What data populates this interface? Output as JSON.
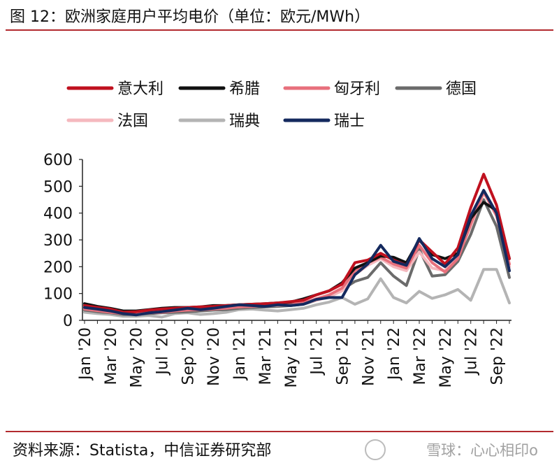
{
  "header": {
    "title": "图 12：欧洲家庭用户平均电价（单位：欧元/MWh）"
  },
  "footer": {
    "source": "资料来源：Statista，中信证券研究部",
    "watermark": "雪球：心心相印o"
  },
  "chart_data": {
    "type": "line",
    "title": "图 12：欧洲家庭用户平均电价（单位：欧元/MWh）",
    "xlabel": "",
    "ylabel": "",
    "ylim": [
      0,
      600
    ],
    "yticks": [
      0,
      100,
      200,
      300,
      400,
      500,
      600
    ],
    "x": [
      "Jan '20",
      "Feb '20",
      "Mar '20",
      "Apr '20",
      "May '20",
      "Jun '20",
      "Jul '20",
      "Aug '20",
      "Sep '20",
      "Oct '20",
      "Nov '20",
      "Dec '20",
      "Jan '21",
      "Feb '21",
      "Mar '21",
      "Apr '21",
      "May '21",
      "Jun '21",
      "Jul '21",
      "Aug '21",
      "Sep '21",
      "Oct '21",
      "Nov '21",
      "Dec '21",
      "Jan '22",
      "Feb '22",
      "Mar '22",
      "Apr '22",
      "May '22",
      "Jun '22",
      "Jul '22",
      "Aug '22",
      "Sep '22",
      "Oct '22"
    ],
    "xtick_labels": [
      "Jan '20",
      "Mar '20",
      "May '20",
      "Jul '20",
      "Sep '20",
      "Nov '20",
      "Jan '21",
      "Mar '21",
      "May '21",
      "Jul '21",
      "Sep '21",
      "Nov '21",
      "Jan '22",
      "Mar '22",
      "May '22",
      "Jul '22",
      "Sep '22"
    ],
    "legend_position": "top",
    "series": [
      {
        "name": "意大利",
        "color": "#c0111f",
        "values": [
          55,
          48,
          42,
          30,
          32,
          38,
          42,
          45,
          48,
          50,
          52,
          55,
          58,
          60,
          62,
          65,
          70,
          75,
          95,
          110,
          135,
          215,
          225,
          250,
          225,
          205,
          300,
          255,
          210,
          270,
          420,
          545,
          430,
          230
        ]
      },
      {
        "name": "希腊",
        "color": "#111111",
        "values": [
          62,
          52,
          45,
          35,
          35,
          40,
          45,
          48,
          48,
          50,
          55,
          55,
          58,
          60,
          62,
          65,
          68,
          80,
          95,
          110,
          140,
          195,
          215,
          240,
          235,
          215,
          300,
          245,
          230,
          250,
          380,
          440,
          410,
          230
        ]
      },
      {
        "name": "匈牙利",
        "color": "#e8707c",
        "values": [
          42,
          36,
          30,
          25,
          25,
          28,
          30,
          35,
          38,
          40,
          42,
          45,
          50,
          52,
          55,
          58,
          60,
          65,
          80,
          95,
          120,
          185,
          215,
          235,
          210,
          195,
          280,
          215,
          180,
          230,
          360,
          480,
          390,
          210
        ]
      },
      {
        "name": "德国",
        "color": "#6b6b6b",
        "values": [
          38,
          32,
          28,
          22,
          22,
          25,
          28,
          30,
          32,
          35,
          38,
          40,
          45,
          48,
          50,
          52,
          55,
          60,
          75,
          90,
          115,
          145,
          160,
          215,
          165,
          130,
          265,
          165,
          170,
          220,
          320,
          450,
          350,
          160
        ]
      },
      {
        "name": "法国",
        "color": "#f5b8be",
        "values": [
          45,
          40,
          35,
          28,
          28,
          30,
          35,
          38,
          40,
          42,
          45,
          48,
          50,
          52,
          55,
          56,
          58,
          62,
          75,
          88,
          110,
          170,
          205,
          230,
          200,
          185,
          255,
          195,
          185,
          245,
          350,
          475,
          395,
          200
        ]
      },
      {
        "name": "瑞典",
        "color": "#b4b4b4",
        "values": [
          30,
          25,
          22,
          15,
          15,
          18,
          12,
          25,
          28,
          22,
          25,
          30,
          40,
          42,
          38,
          35,
          40,
          45,
          58,
          68,
          85,
          60,
          80,
          155,
          85,
          65,
          108,
          82,
          95,
          115,
          75,
          190,
          190,
          65
        ]
      },
      {
        "name": "瑞士",
        "color": "#14295e",
        "values": [
          48,
          42,
          35,
          25,
          20,
          28,
          32,
          38,
          45,
          40,
          45,
          52,
          58,
          55,
          52,
          58,
          55,
          60,
          78,
          85,
          85,
          170,
          210,
          280,
          220,
          205,
          305,
          230,
          200,
          245,
          390,
          485,
          400,
          185
        ]
      }
    ]
  }
}
